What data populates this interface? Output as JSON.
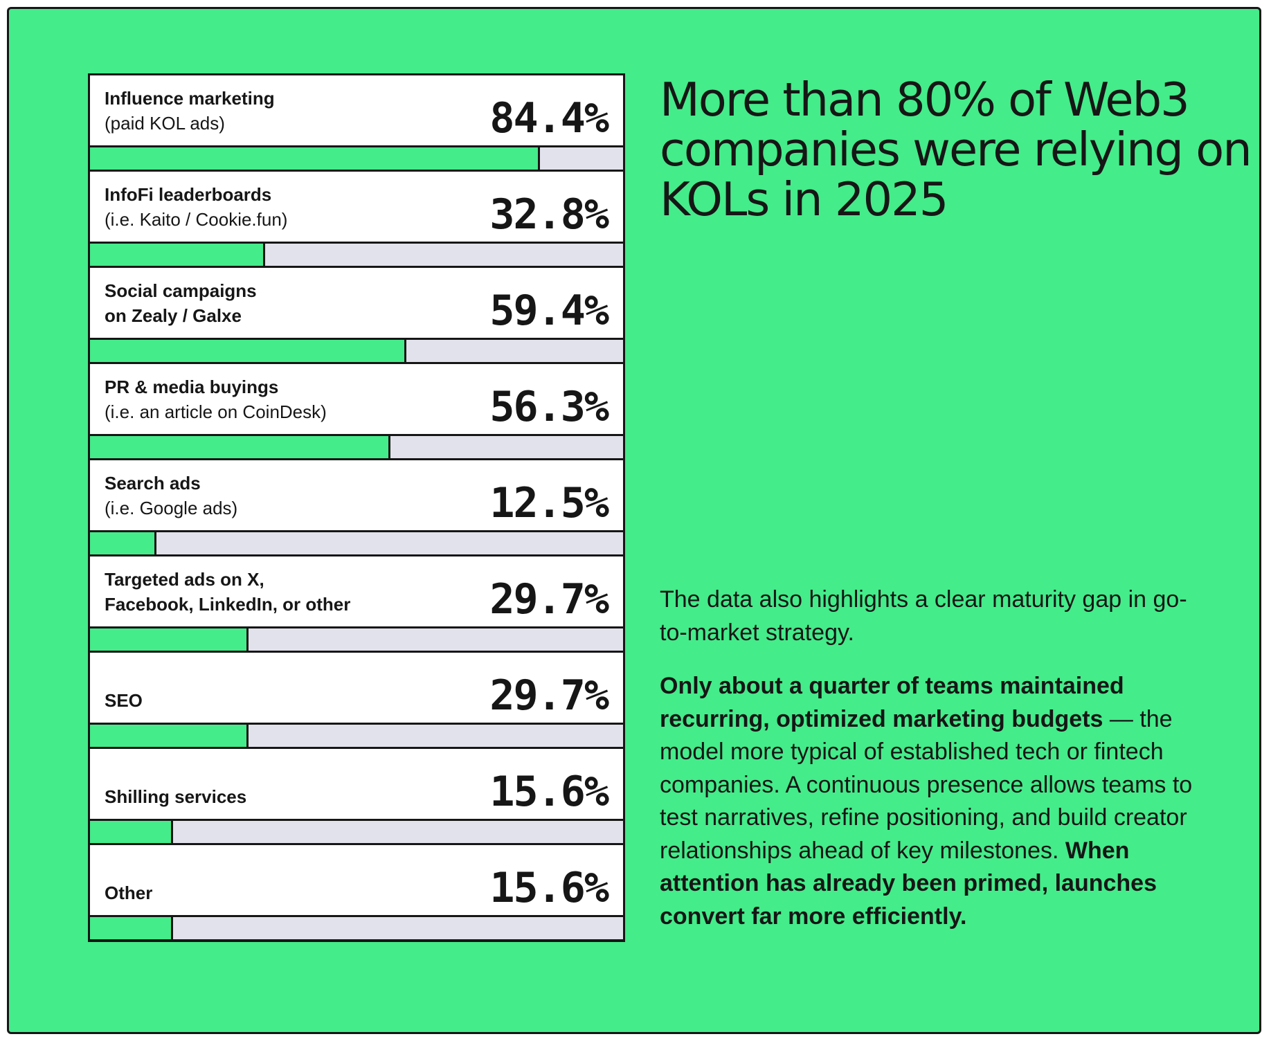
{
  "headline": "More than 80% of Web3 companies were relying on KOLs in 2025",
  "body": {
    "p1": "The data also highlights a clear maturity gap in go-to-market strategy.",
    "p2_bold1": "Only about a quarter of teams maintained recurring, optimized marketing budgets",
    "p2_normal1": " — the model more typical of established tech or fintech companies. A continuous presence allows teams to test narratives, refine positioning, and build creator relationships ahead of key milestones. ",
    "p2_bold2": "When attention has already been primed, launches convert far more efficiently."
  },
  "colors": {
    "accent": "#44ec8a",
    "track": "#e2e2ec",
    "ink": "#161616"
  },
  "chart_data": {
    "type": "bar",
    "orientation": "horizontal",
    "xlim": [
      0,
      100
    ],
    "categories": [
      {
        "line1": "Influence marketing",
        "line2": "(paid KOL ads)",
        "two_bold": false
      },
      {
        "line1": "InfoFi leaderboards",
        "line2": "(i.e. Kaito / Cookie.fun)",
        "two_bold": false
      },
      {
        "line1": "Social campaigns",
        "line2": "on Zealy / Galxe",
        "two_bold": true
      },
      {
        "line1": "PR & media buyings",
        "line2": "(i.e. an article on CoinDesk)",
        "two_bold": false
      },
      {
        "line1": "Search ads",
        "line2": "(i.e. Google ads)",
        "two_bold": false
      },
      {
        "line1": "Targeted ads on X,",
        "line2": "Facebook, LinkedIn, or other",
        "two_bold": true
      },
      {
        "line1": "SEO",
        "line2": "",
        "two_bold": false
      },
      {
        "line1": "Shilling services",
        "line2": "",
        "two_bold": false
      },
      {
        "line1": "Other",
        "line2": "",
        "two_bold": false
      }
    ],
    "values": [
      84.4,
      32.8,
      59.4,
      56.3,
      12.5,
      29.7,
      29.7,
      15.6,
      15.6
    ],
    "value_labels": [
      "84.4%",
      "32.8%",
      "59.4%",
      "56.3%",
      "12.5%",
      "29.7%",
      "29.7%",
      "15.6%",
      "15.6%"
    ]
  }
}
